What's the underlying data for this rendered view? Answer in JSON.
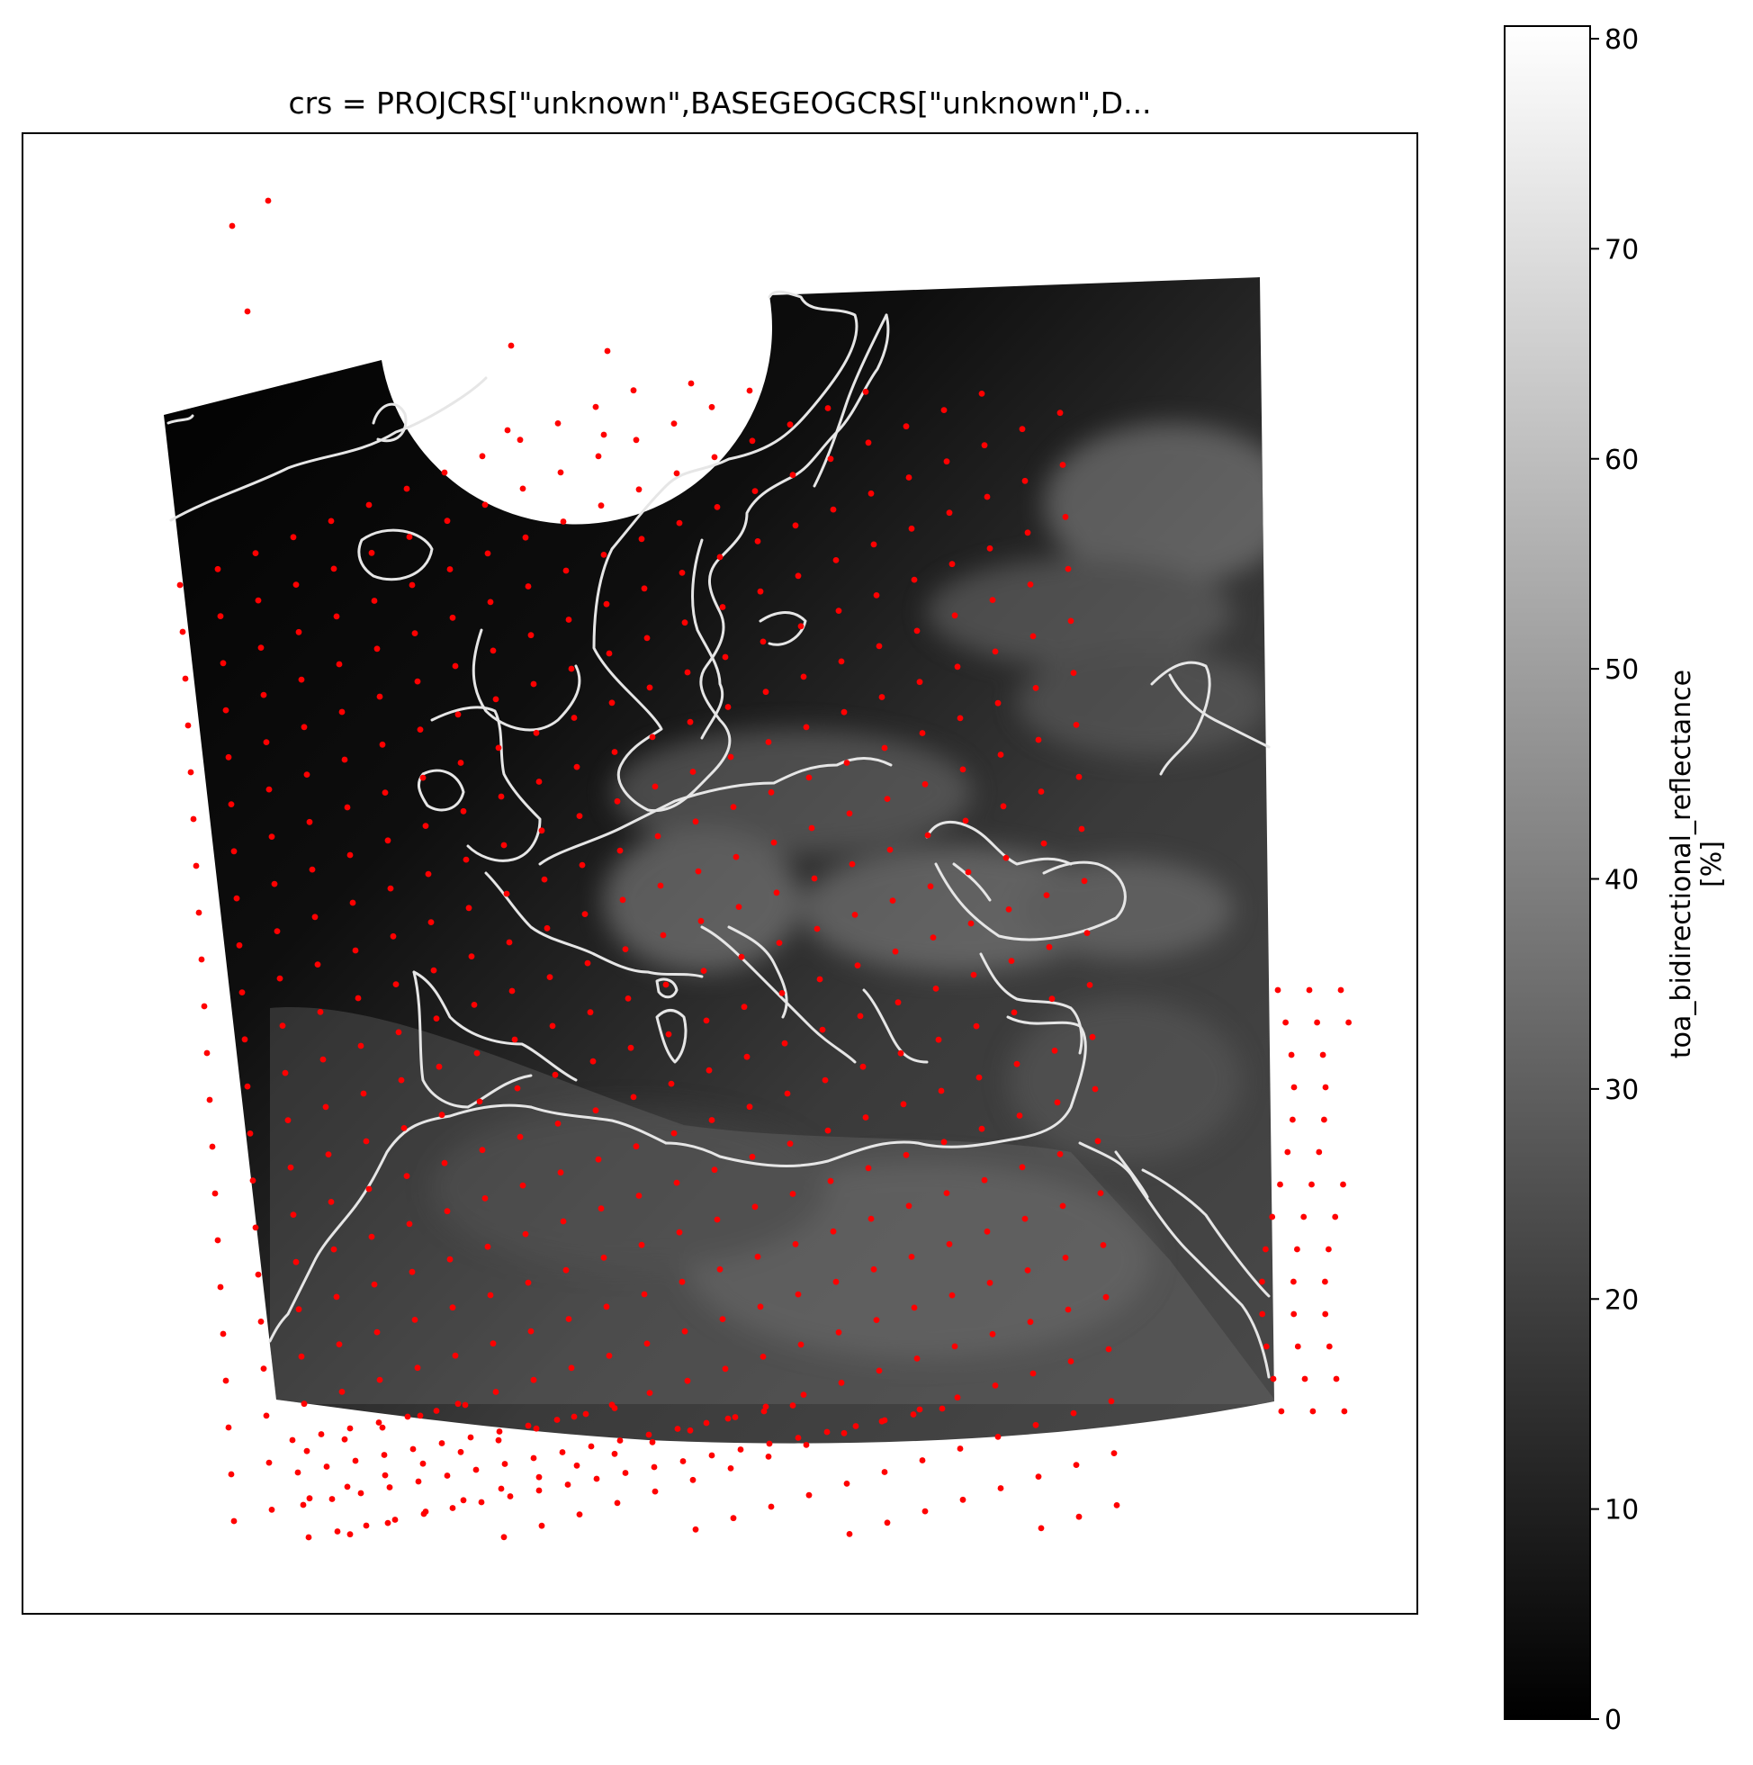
{
  "figure": {
    "title": "crs = PROJCRS[\"unknown\",BASEGEOGCRS[\"unknown\",D...",
    "map": {
      "image_variable": "toa_bidirectional_reflectance",
      "colormap": "greys",
      "coastline_color": "#e6e6e6",
      "point_color": "#ff0000",
      "background_color": "#000000"
    },
    "colorbar": {
      "label": "toa_bidirectional_reflectance",
      "unit": "[%]",
      "min": 0,
      "max": 80.6,
      "ticks": [
        "0",
        "10",
        "20",
        "30",
        "40",
        "50",
        "60",
        "70",
        "80"
      ],
      "gradient_colors": [
        "#000000",
        "#ffffff"
      ]
    }
  }
}
